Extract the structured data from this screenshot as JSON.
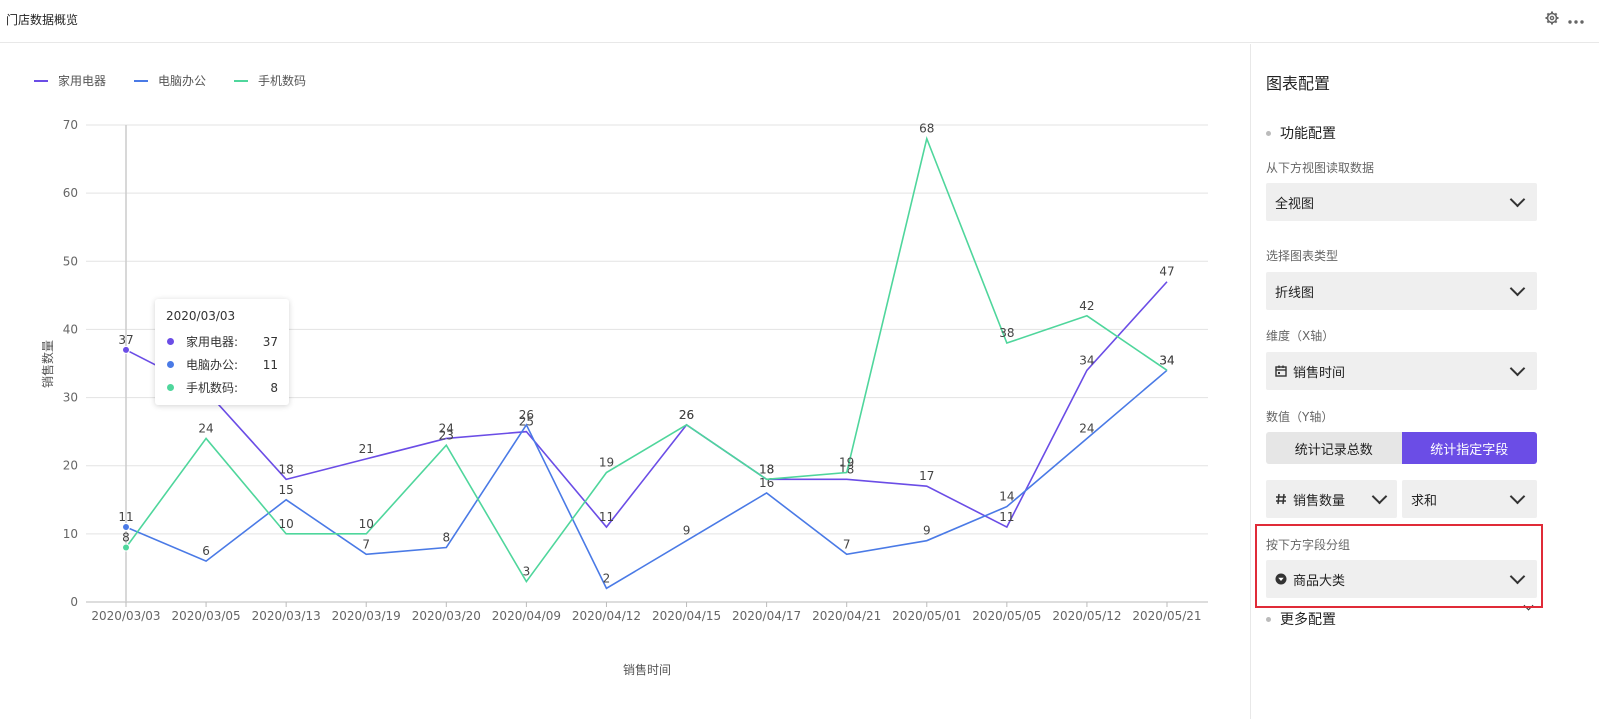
{
  "header": {
    "title": "门店数据概览",
    "icons": [
      "gear-icon",
      "more-icon"
    ]
  },
  "chart_data": {
    "type": "line",
    "xlabel": "销售时间",
    "ylabel": "销售数量",
    "ylim": [
      0,
      70
    ],
    "yticks": [
      "0",
      "10",
      "20",
      "30",
      "40",
      "50",
      "60",
      "70"
    ],
    "categories": [
      "2020/03/03",
      "2020/03/05",
      "2020/03/13",
      "2020/03/19",
      "2020/03/20",
      "2020/04/09",
      "2020/04/12",
      "2020/04/15",
      "2020/04/17",
      "2020/04/21",
      "2020/05/01",
      "2020/05/05",
      "2020/05/12",
      "2020/05/21"
    ],
    "series": [
      {
        "name": "家用电器",
        "color": "#6b4de6",
        "values": [
          37,
          31,
          18,
          21,
          24,
          25,
          11,
          26,
          18,
          18,
          17,
          11,
          34,
          47
        ]
      },
      {
        "name": "电脑办公",
        "color": "#4a7ae6",
        "values": [
          11,
          6,
          15,
          7,
          8,
          26,
          2,
          9,
          16,
          7,
          9,
          14,
          24,
          34
        ]
      },
      {
        "name": "手机数码",
        "color": "#4fd69c",
        "values": [
          8,
          24,
          10,
          10,
          23,
          3,
          19,
          26,
          18,
          19,
          68,
          38,
          42,
          34
        ]
      }
    ],
    "legend": "top-left",
    "grid": true
  },
  "tooltip": {
    "title": "2020/03/03",
    "rows": [
      {
        "name": "家用电器:",
        "value": "37",
        "color": "#6b4de6"
      },
      {
        "name": "电脑办公:",
        "value": "11",
        "color": "#4a7ae6"
      },
      {
        "name": "手机数码:",
        "value": "8",
        "color": "#4fd69c"
      }
    ]
  },
  "panel": {
    "title": "图表配置",
    "section_function": "功能配置",
    "data_source_label": "从下方视图读取数据",
    "data_source_value": "全视图",
    "chart_type_label": "选择图表类型",
    "chart_type_value": "折线图",
    "x_label": "维度（X轴）",
    "x_value": "销售时间",
    "y_label": "数值（Y轴）",
    "y_mode_count": "统计记录总数",
    "y_mode_field": "统计指定字段",
    "y_field": "销售数量",
    "y_agg": "求和",
    "group_label": "按下方字段分组",
    "group_value": "商品大类",
    "section_more": "更多配置"
  }
}
